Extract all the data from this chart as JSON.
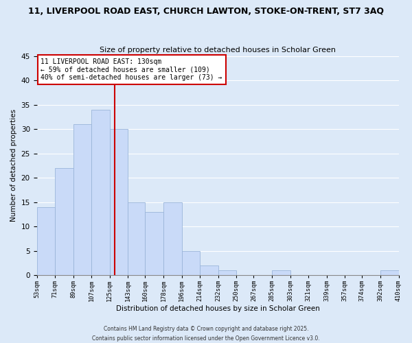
{
  "title1": "11, LIVERPOOL ROAD EAST, CHURCH LAWTON, STOKE-ON-TRENT, ST7 3AQ",
  "title2": "Size of property relative to detached houses in Scholar Green",
  "xlabel": "Distribution of detached houses by size in Scholar Green",
  "ylabel": "Number of detached properties",
  "bar_color": "#c9daf8",
  "bar_edge_color": "#9ab5d9",
  "background_color": "#dce9f8",
  "plot_bg_color": "#dce9f8",
  "grid_color": "#ffffff",
  "bin_edges": [
    53,
    71,
    89,
    107,
    125,
    143,
    160,
    178,
    196,
    214,
    232,
    250,
    267,
    285,
    303,
    321,
    339,
    357,
    374,
    392,
    410
  ],
  "counts": [
    14,
    22,
    31,
    34,
    30,
    15,
    13,
    15,
    5,
    2,
    1,
    0,
    0,
    1,
    0,
    0,
    0,
    0,
    0,
    1
  ],
  "vline_x": 130,
  "vline_color": "#cc0000",
  "annotation_line1": "11 LIVERPOOL ROAD EAST: 130sqm",
  "annotation_line2": "← 59% of detached houses are smaller (109)",
  "annotation_line3": "40% of semi-detached houses are larger (73) →",
  "annotation_box_color": "#ffffff",
  "annotation_box_edge": "#cc0000",
  "ylim": [
    0,
    45
  ],
  "yticks": [
    0,
    5,
    10,
    15,
    20,
    25,
    30,
    35,
    40,
    45
  ],
  "tick_labels": [
    "53sqm",
    "71sqm",
    "89sqm",
    "107sqm",
    "125sqm",
    "143sqm",
    "160sqm",
    "178sqm",
    "196sqm",
    "214sqm",
    "232sqm",
    "250sqm",
    "267sqm",
    "285sqm",
    "303sqm",
    "321sqm",
    "339sqm",
    "357sqm",
    "374sqm",
    "392sqm",
    "410sqm"
  ],
  "footer1": "Contains HM Land Registry data © Crown copyright and database right 2025.",
  "footer2": "Contains public sector information licensed under the Open Government Licence v3.0."
}
